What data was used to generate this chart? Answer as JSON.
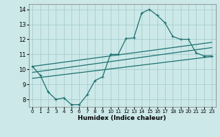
{
  "xlabel": "Humidex (Indice chaleur)",
  "bg_color": "#cce8e8",
  "line_color": "#1a6e6e",
  "grid_color": "#a0c8c8",
  "xmin": -0.5,
  "xmax": 23.5,
  "ymin": 7.5,
  "ymax": 14.35,
  "yticks": [
    8,
    9,
    10,
    11,
    12,
    13,
    14
  ],
  "xticks": [
    0,
    1,
    2,
    3,
    4,
    5,
    6,
    7,
    8,
    9,
    10,
    11,
    12,
    13,
    14,
    15,
    16,
    17,
    18,
    19,
    20,
    21,
    22,
    23
  ],
  "main_x": [
    0,
    1,
    2,
    3,
    4,
    5,
    6,
    7,
    8,
    9,
    10,
    11,
    12,
    13,
    14,
    15,
    16,
    17,
    18,
    19,
    20,
    21,
    22,
    23
  ],
  "main_y": [
    10.2,
    9.6,
    8.5,
    8.0,
    8.1,
    7.65,
    7.65,
    8.3,
    9.25,
    9.5,
    11.0,
    11.0,
    12.05,
    12.1,
    13.75,
    14.0,
    13.6,
    13.1,
    12.2,
    12.0,
    12.0,
    11.1,
    10.9,
    10.9
  ],
  "line1_x": [
    0,
    23
  ],
  "line1_y": [
    10.2,
    11.8
  ],
  "line2_x": [
    0,
    23
  ],
  "line2_y": [
    9.8,
    11.45
  ],
  "line3_x": [
    0,
    23
  ],
  "line3_y": [
    9.4,
    10.85
  ]
}
